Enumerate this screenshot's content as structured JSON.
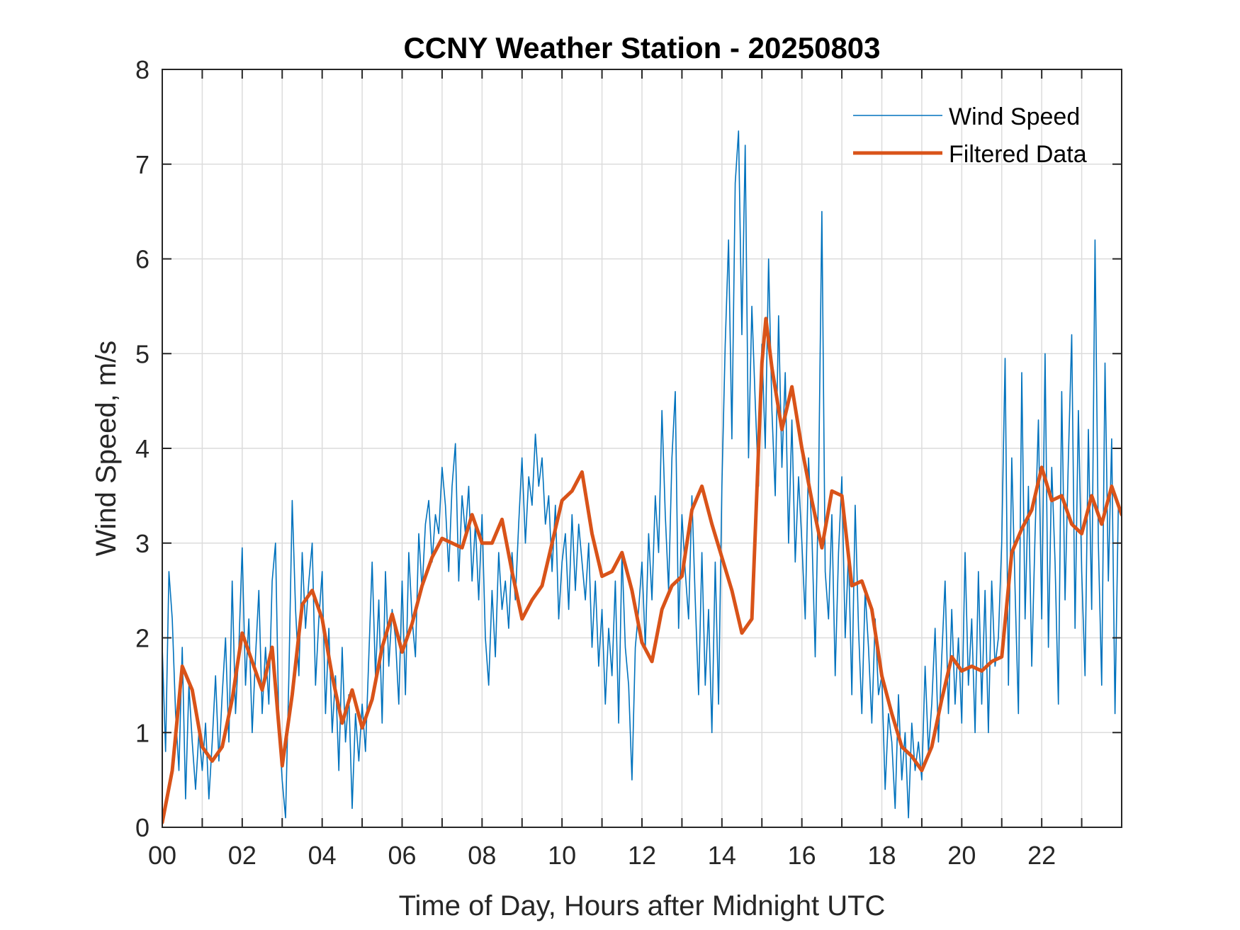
{
  "chart_data": {
    "type": "line",
    "title": "CCNY Weather Station - 20250803",
    "xlabel": "Time of Day, Hours after Midnight UTC",
    "ylabel": "Wind Speed, m/s",
    "xlim": [
      0,
      24
    ],
    "ylim": [
      0,
      8
    ],
    "xticks": [
      0,
      2,
      4,
      6,
      8,
      10,
      12,
      14,
      16,
      18,
      20,
      22
    ],
    "xtick_labels": [
      "00",
      "02",
      "04",
      "06",
      "08",
      "10",
      "12",
      "14",
      "16",
      "18",
      "20",
      "22"
    ],
    "yticks": [
      0,
      1,
      2,
      3,
      4,
      5,
      6,
      7,
      8
    ],
    "ytick_labels": [
      "0",
      "1",
      "2",
      "3",
      "4",
      "5",
      "6",
      "7",
      "8"
    ],
    "grid": true,
    "legend_position": "top-right",
    "series": [
      {
        "name": "Wind Speed",
        "color": "#0072BD",
        "note": "raw samples, estimated at 5-minute resolution",
        "x_start": 0,
        "x_step_hours": 0.0833333,
        "values": [
          1.9,
          0.8,
          2.7,
          2.2,
          1.2,
          0.6,
          1.9,
          0.3,
          1.5,
          0.9,
          0.4,
          1.0,
          0.6,
          1.1,
          0.3,
          0.9,
          1.6,
          0.7,
          1.4,
          2.0,
          0.9,
          2.6,
          1.2,
          1.9,
          2.95,
          1.5,
          2.2,
          1.0,
          1.8,
          2.5,
          1.2,
          1.9,
          1.3,
          2.6,
          3.0,
          1.1,
          0.5,
          0.1,
          1.6,
          3.45,
          2.3,
          1.6,
          2.9,
          2.1,
          2.6,
          3.0,
          1.5,
          2.2,
          2.7,
          1.2,
          2.1,
          1.0,
          1.6,
          0.6,
          1.9,
          0.9,
          1.4,
          0.2,
          1.2,
          0.7,
          1.3,
          0.8,
          1.8,
          2.8,
          1.6,
          2.4,
          1.1,
          2.7,
          1.7,
          2.3,
          2.0,
          1.3,
          2.6,
          1.4,
          2.9,
          2.2,
          1.8,
          3.1,
          2.5,
          3.2,
          3.45,
          2.8,
          3.3,
          3.1,
          3.8,
          3.4,
          2.7,
          3.6,
          4.05,
          2.6,
          3.5,
          3.1,
          3.6,
          2.6,
          3.2,
          2.4,
          3.3,
          2.0,
          1.5,
          2.5,
          1.8,
          2.9,
          2.3,
          2.6,
          2.1,
          2.9,
          2.4,
          3.2,
          3.9,
          3.0,
          3.7,
          3.4,
          4.15,
          3.6,
          3.9,
          3.2,
          3.5,
          2.7,
          3.4,
          2.2,
          2.8,
          3.1,
          2.3,
          3.3,
          2.5,
          3.2,
          2.8,
          2.4,
          3.0,
          1.9,
          2.6,
          1.7,
          2.3,
          1.3,
          2.1,
          1.6,
          2.6,
          1.1,
          2.9,
          1.9,
          1.5,
          0.5,
          1.9,
          2.3,
          2.8,
          1.9,
          3.1,
          2.4,
          3.5,
          2.9,
          4.4,
          3.3,
          2.5,
          3.9,
          4.6,
          2.1,
          3.3,
          2.7,
          2.2,
          3.5,
          2.4,
          1.4,
          2.9,
          1.5,
          2.3,
          1.0,
          2.8,
          1.3,
          3.6,
          5.1,
          6.2,
          4.1,
          6.8,
          7.35,
          5.2,
          7.2,
          3.9,
          5.5,
          4.5,
          3.6,
          5.1,
          4.0,
          6.0,
          4.4,
          3.5,
          5.4,
          3.8,
          4.8,
          3.0,
          4.3,
          2.8,
          3.7,
          3.0,
          2.2,
          3.9,
          3.1,
          1.8,
          3.6,
          6.5,
          2.7,
          2.2,
          3.3,
          1.6,
          2.9,
          3.7,
          2.0,
          2.9,
          1.4,
          3.4,
          2.1,
          1.2,
          2.5,
          1.9,
          1.1,
          2.2,
          1.4,
          1.6,
          0.4,
          1.2,
          0.9,
          0.2,
          1.4,
          0.5,
          1.0,
          0.1,
          1.1,
          0.6,
          0.9,
          0.5,
          1.7,
          0.8,
          1.3,
          2.1,
          0.9,
          1.8,
          2.6,
          1.2,
          2.3,
          1.3,
          2.0,
          1.1,
          2.9,
          1.5,
          2.2,
          1.0,
          2.7,
          1.3,
          2.5,
          1.0,
          2.6,
          1.7,
          2.0,
          3.0,
          4.95,
          1.5,
          3.9,
          2.5,
          1.2,
          4.8,
          2.2,
          3.6,
          1.7,
          3.1,
          4.3,
          2.2,
          5.0,
          1.9,
          3.8,
          2.8,
          1.3,
          4.6,
          2.4,
          3.9,
          5.2,
          2.1,
          4.4,
          2.7,
          1.6,
          4.2,
          2.3,
          6.2,
          3.0,
          1.5,
          4.9,
          2.6,
          4.1,
          1.2,
          3.4
        ]
      },
      {
        "name": "Filtered Data",
        "color": "#D95319",
        "x": [
          0,
          0.25,
          0.5,
          0.75,
          1.0,
          1.25,
          1.5,
          1.75,
          2.0,
          2.25,
          2.5,
          2.75,
          3.0,
          3.25,
          3.5,
          3.75,
          4.0,
          4.25,
          4.5,
          4.75,
          5.0,
          5.25,
          5.5,
          5.75,
          6.0,
          6.25,
          6.5,
          6.75,
          7.0,
          7.25,
          7.5,
          7.75,
          8.0,
          8.25,
          8.5,
          8.75,
          9.0,
          9.25,
          9.5,
          9.75,
          10.0,
          10.25,
          10.5,
          10.75,
          11.0,
          11.25,
          11.5,
          11.75,
          12.0,
          12.25,
          12.5,
          12.75,
          13.0,
          13.25,
          13.5,
          13.75,
          14.0,
          14.25,
          14.5,
          14.75,
          15.0,
          15.1,
          15.25,
          15.5,
          15.75,
          16.0,
          16.25,
          16.5,
          16.75,
          17.0,
          17.25,
          17.5,
          17.75,
          18.0,
          18.25,
          18.5,
          18.75,
          19.0,
          19.25,
          19.5,
          19.75,
          20.0,
          20.25,
          20.5,
          20.75,
          21.0,
          21.25,
          21.5,
          21.75,
          22.0,
          22.25,
          22.5,
          22.75,
          23.0,
          23.25,
          23.5,
          23.75,
          24.0
        ],
        "values": [
          0.05,
          0.6,
          1.7,
          1.45,
          0.85,
          0.7,
          0.85,
          1.35,
          2.05,
          1.75,
          1.45,
          1.9,
          0.65,
          1.4,
          2.35,
          2.5,
          2.2,
          1.6,
          1.1,
          1.45,
          1.05,
          1.35,
          1.9,
          2.25,
          1.85,
          2.15,
          2.55,
          2.85,
          3.05,
          3.0,
          2.95,
          3.3,
          3.0,
          3.0,
          3.25,
          2.7,
          2.2,
          2.4,
          2.55,
          3.0,
          3.45,
          3.55,
          3.75,
          3.1,
          2.65,
          2.7,
          2.9,
          2.5,
          1.95,
          1.75,
          2.3,
          2.55,
          2.65,
          3.35,
          3.6,
          3.2,
          2.85,
          2.5,
          2.05,
          2.2,
          4.9,
          5.37,
          4.85,
          4.2,
          4.65,
          4.0,
          3.45,
          2.95,
          3.55,
          3.5,
          2.55,
          2.6,
          2.3,
          1.6,
          1.2,
          0.85,
          0.75,
          0.6,
          0.85,
          1.35,
          1.8,
          1.65,
          1.7,
          1.65,
          1.75,
          1.8,
          2.9,
          3.15,
          3.35,
          3.8,
          3.45,
          3.5,
          3.2,
          3.1,
          3.5,
          3.2,
          3.6,
          3.3
        ]
      }
    ]
  }
}
